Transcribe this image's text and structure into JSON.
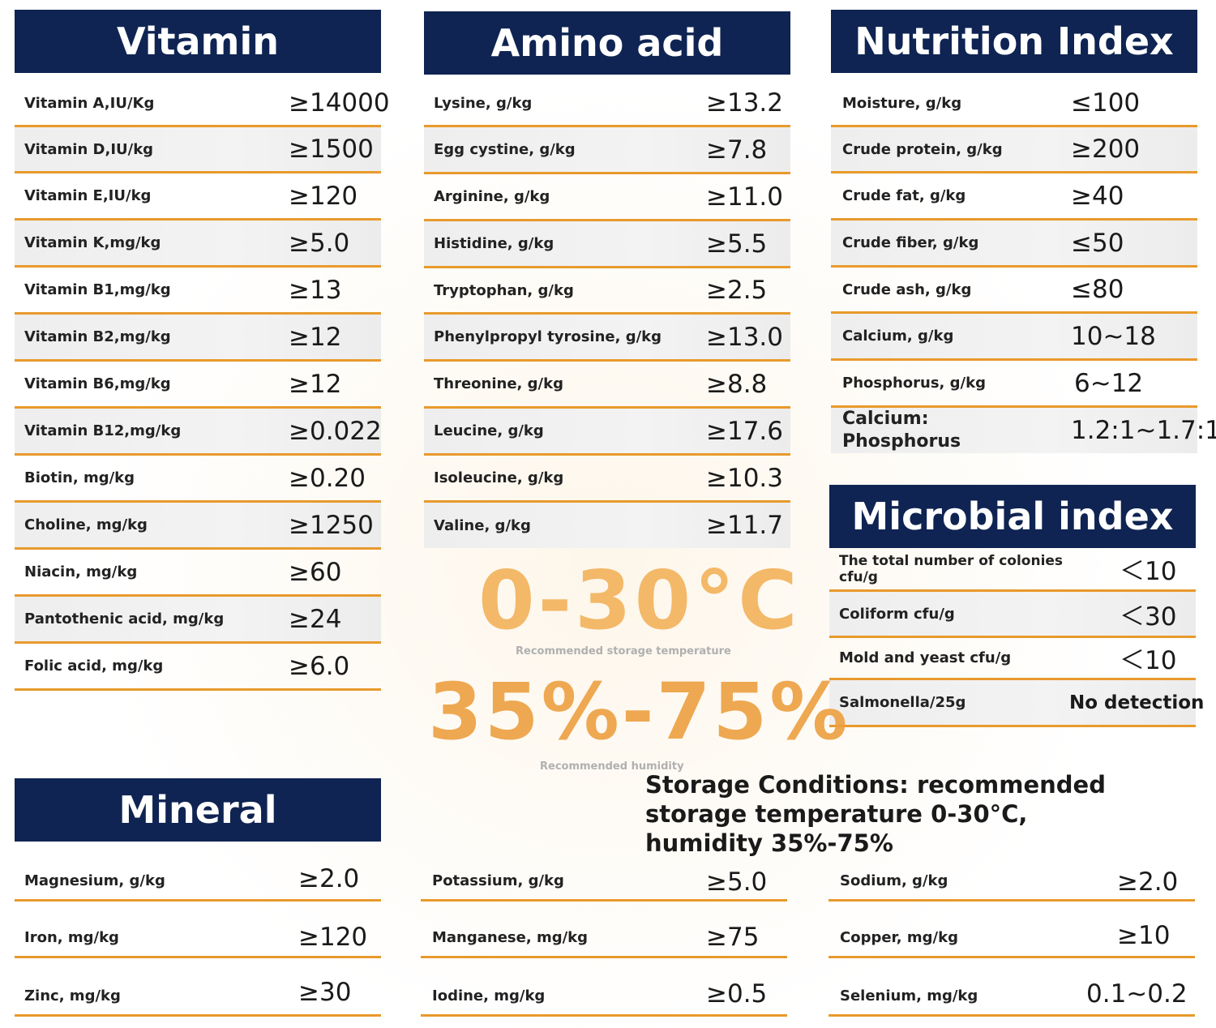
{
  "vitamin": {
    "title": "Vitamin",
    "rows": [
      {
        "label": "Vitamin A,IU/Kg",
        "value": "≥14000"
      },
      {
        "label": "Vitamin D,IU/kg",
        "value": "≥1500"
      },
      {
        "label": "Vitamin E,IU/kg",
        "value": "≥120"
      },
      {
        "label": "Vitamin K,mg/kg",
        "value": "≥5.0"
      },
      {
        "label": "Vitamin B1,mg/kg",
        "value": "≥13"
      },
      {
        "label": "Vitamin B2,mg/kg",
        "value": "≥12"
      },
      {
        "label": "Vitamin B6,mg/kg",
        "value": "≥12"
      },
      {
        "label": "Vitamin B12,mg/kg",
        "value": "≥0.022"
      },
      {
        "label": "Biotin, mg/kg",
        "value": "≥0.20"
      },
      {
        "label": "Choline, mg/kg",
        "value": "≥1250"
      },
      {
        "label": "Niacin, mg/kg",
        "value": "≥60"
      },
      {
        "label": "Pantothenic acid, mg/kg",
        "value": "≥24"
      },
      {
        "label": "Folic acid, mg/kg",
        "value": "≥6.0"
      }
    ]
  },
  "amino": {
    "title": "Amino acid",
    "rows": [
      {
        "label": "Lysine, g/kg",
        "value": "≥13.2"
      },
      {
        "label": "Egg cystine, g/kg",
        "value": "≥7.8"
      },
      {
        "label": "Arginine, g/kg",
        "value": "≥11.0"
      },
      {
        "label": "Histidine, g/kg",
        "value": "≥5.5"
      },
      {
        "label": "Tryptophan, g/kg",
        "value": "≥2.5"
      },
      {
        "label": "Phenylpropyl tyrosine, g/kg",
        "value": "≥13.0"
      },
      {
        "label": "Threonine, g/kg",
        "value": "≥8.8"
      },
      {
        "label": "Leucine, g/kg",
        "value": "≥17.6"
      },
      {
        "label": "Isoleucine, g/kg",
        "value": "≥10.3"
      },
      {
        "label": "Valine, g/kg",
        "value": "≥11.7"
      }
    ]
  },
  "nutrition": {
    "title": "Nutrition Index",
    "rows": [
      {
        "label": "Moisture, g/kg",
        "value": "≤100"
      },
      {
        "label": "Crude protein, g/kg",
        "value": "≥200"
      },
      {
        "label": "Crude fat, g/kg",
        "value": "≥40"
      },
      {
        "label": "Crude fiber, g/kg",
        "value": "≤50"
      },
      {
        "label": "Crude ash, g/kg",
        "value": "≤80"
      },
      {
        "label": "Calcium, g/kg",
        "value": "10~18"
      },
      {
        "label": "Phosphorus, g/kg",
        "value": "6~12"
      },
      {
        "label": "Calcium: Phosphorus",
        "value": "1.2:1~1.7:1"
      }
    ]
  },
  "microbial": {
    "title": "Microbial index",
    "rows": [
      {
        "label": "The total number of colonies cfu/g",
        "value": "＜10"
      },
      {
        "label": "Coliform cfu/g",
        "value": "＜30"
      },
      {
        "label": "Mold and yeast cfu/g",
        "value": "＜10"
      },
      {
        "label": "Salmonella/25g",
        "value": "No detection"
      }
    ]
  },
  "storage": {
    "temp_big": "0-30°C",
    "temp_caption": "Recommended storage temperature",
    "humidity_big": "35%-75%",
    "humidity_caption": "Recommended humidity",
    "text": "Storage Conditions: recommended storage temperature 0-30°C, humidity 35%-75%"
  },
  "mineral": {
    "title": "Mineral",
    "col1": [
      {
        "label": "Magnesium, g/kg",
        "value": "≥2.0"
      },
      {
        "label": "Iron, mg/kg",
        "value": "≥120"
      },
      {
        "label": "Zinc, mg/kg",
        "value": "≥30"
      }
    ],
    "col2": [
      {
        "label": "Potassium, g/kg",
        "value": "≥5.0"
      },
      {
        "label": "Manganese, mg/kg",
        "value": "≥75"
      },
      {
        "label": "Iodine, mg/kg",
        "value": "≥0.5"
      }
    ],
    "col3": [
      {
        "label": "Sodium, g/kg",
        "value": "≥2.0"
      },
      {
        "label": "Copper, mg/kg",
        "value": "≥10"
      },
      {
        "label": "Selenium, mg/kg",
        "value": "0.1~0.2"
      }
    ]
  },
  "colors": {
    "header_bg": "#0f2452",
    "rule": "#e89a2c",
    "accent_orange": "#eda040"
  }
}
